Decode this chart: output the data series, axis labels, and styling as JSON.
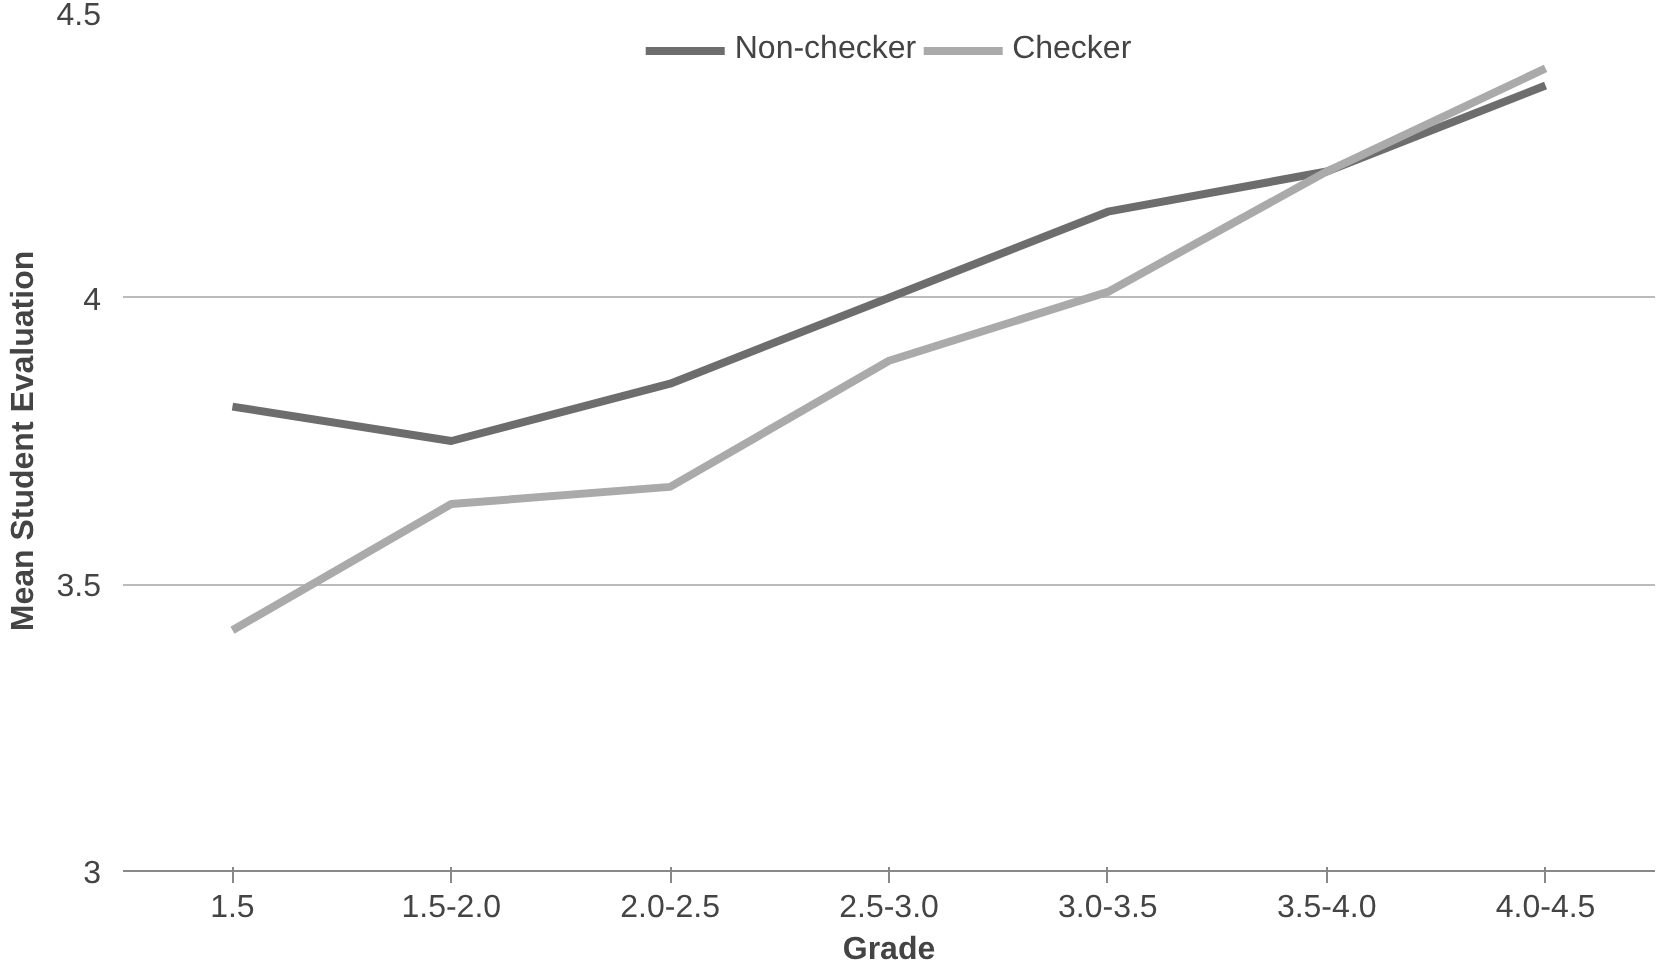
{
  "chart_data": {
    "type": "line",
    "xlabel": "Grade",
    "ylabel": "Mean Student Evaluation",
    "categories": [
      "1.5",
      "1.5-2.0",
      "2.0-2.5",
      "2.5-3.0",
      "3.0-3.5",
      "3.5-4.0",
      "4.0-4.5"
    ],
    "series": [
      {
        "name": "Non-checker",
        "color": "#6d6d6d",
        "values": [
          3.81,
          3.75,
          3.85,
          4.0,
          4.15,
          4.22,
          4.37
        ]
      },
      {
        "name": "Checker",
        "color": "#aaaaaa",
        "values": [
          3.42,
          3.64,
          3.67,
          3.89,
          4.01,
          4.22,
          4.4
        ]
      }
    ],
    "ylim": [
      3,
      4.5
    ],
    "yticks": [
      3,
      3.5,
      4,
      4.5
    ],
    "grid": "y",
    "legend": "top",
    "marker": "none",
    "line_style": "solid"
  }
}
